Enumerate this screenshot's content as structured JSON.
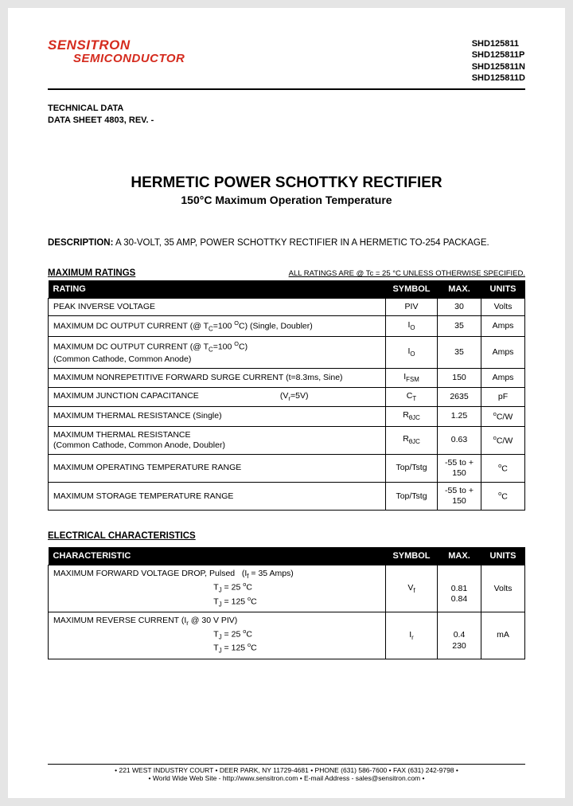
{
  "logo": {
    "line1": "SENSITRON",
    "line2": "SEMICONDUCTOR"
  },
  "part_numbers": [
    "SHD125811",
    "SHD125811P",
    "SHD125811N",
    "SHD125811D"
  ],
  "tech_data": {
    "line1": "TECHNICAL DATA",
    "line2": "DATA SHEET 4803, REV. -"
  },
  "main_title": "HERMETIC POWER SCHOTTKY RECTIFIER",
  "sub_title": "150°C Maximum Operation Temperature",
  "desc_label": "DESCRIPTION:",
  "desc_body": " A 30-VOLT, 35 AMP, POWER SCHOTTKY RECTIFIER IN A HERMETIC TO-254 PACKAGE.",
  "ratings": {
    "heading": "MAXIMUM RATINGS",
    "note": "ALL RATINGS ARE @ Tc = 25 °C UNLESS OTHERWISE SPECIFIED.",
    "cols": [
      "RATING",
      "SYMBOL",
      "MAX.",
      "UNITS"
    ],
    "rows": [
      {
        "rating": "PEAK INVERSE VOLTAGE",
        "symbol": "PIV",
        "max": "30",
        "units": "Volts"
      },
      {
        "rating": "MAXIMUM DC OUTPUT CURRENT (@ T<sub>C</sub>=100 <sup>O</sup>C) (Single, Doubler)",
        "symbol": "I<sub>O</sub>",
        "max": "35",
        "units": "Amps"
      },
      {
        "rating": "MAXIMUM DC OUTPUT CURRENT (@ T<sub>C</sub>=100 <sup>O</sup>C)<br>(Common Cathode, Common Anode)",
        "symbol": "I<sub>O</sub>",
        "max": "35",
        "units": "Amps"
      },
      {
        "rating": "MAXIMUM NONREPETITIVE FORWARD SURGE CURRENT (t=8.3ms, Sine)",
        "symbol": "I<sub>FSM</sub>",
        "max": "150",
        "units": "Amps"
      },
      {
        "rating": "MAXIMUM JUNCTION CAPACITANCE&nbsp;&nbsp;&nbsp;&nbsp;&nbsp;&nbsp;&nbsp;&nbsp;&nbsp;&nbsp;&nbsp;&nbsp;&nbsp;&nbsp;&nbsp;&nbsp;&nbsp;&nbsp;&nbsp;&nbsp;&nbsp;&nbsp;&nbsp;&nbsp;&nbsp;&nbsp;&nbsp;&nbsp;&nbsp;&nbsp;&nbsp;&nbsp;&nbsp;&nbsp;&nbsp;(V<sub>r</sub>=5V)",
        "symbol": "C<sub>T</sub>",
        "max": "2635",
        "units": "pF"
      },
      {
        "rating": "MAXIMUM THERMAL RESISTANCE (Single)",
        "symbol": "R<sub>θJC</sub>",
        "max": "1.25",
        "units": "<sup>o</sup>C/W"
      },
      {
        "rating": "MAXIMUM THERMAL RESISTANCE<br>(Common Cathode, Common Anode, Doubler)",
        "symbol": "R<sub>θJC</sub>",
        "max": "0.63",
        "units": "<sup>o</sup>C/W"
      },
      {
        "rating": "MAXIMUM OPERATING TEMPERATURE RANGE",
        "symbol": "Top/Tstg",
        "max": "-55 to + 150",
        "units": "<sup>o</sup>C"
      },
      {
        "rating": "MAXIMUM STORAGE TEMPERATURE RANGE",
        "symbol": "Top/Tstg",
        "max": "-55 to + 150",
        "units": "<sup>o</sup>C"
      }
    ]
  },
  "elec": {
    "heading": "ELECTRICAL CHARACTERISTICS",
    "cols": [
      "CHARACTERISTIC",
      "SYMBOL",
      "MAX.",
      "UNITS"
    ],
    "rows": [
      {
        "char": "MAXIMUM FORWARD VOLTAGE DROP, Pulsed&nbsp;&nbsp;&nbsp;(I<sub>f</sub> = 35 Amps)<br>&nbsp;&nbsp;&nbsp;&nbsp;&nbsp;&nbsp;&nbsp;&nbsp;&nbsp;&nbsp;&nbsp;&nbsp;&nbsp;&nbsp;&nbsp;&nbsp;&nbsp;&nbsp;&nbsp;&nbsp;&nbsp;&nbsp;&nbsp;&nbsp;&nbsp;&nbsp;&nbsp;&nbsp;&nbsp;&nbsp;&nbsp;&nbsp;&nbsp;&nbsp;&nbsp;&nbsp;&nbsp;&nbsp;&nbsp;&nbsp;&nbsp;&nbsp;&nbsp;&nbsp;&nbsp;&nbsp;&nbsp;&nbsp;&nbsp;&nbsp;&nbsp;&nbsp;&nbsp;&nbsp;&nbsp;&nbsp;&nbsp;&nbsp;&nbsp;&nbsp;&nbsp;&nbsp;&nbsp;&nbsp;&nbsp;&nbsp;&nbsp;&nbsp;&nbsp;T<sub>J</sub> = 25 <sup>o</sup>C<br>&nbsp;&nbsp;&nbsp;&nbsp;&nbsp;&nbsp;&nbsp;&nbsp;&nbsp;&nbsp;&nbsp;&nbsp;&nbsp;&nbsp;&nbsp;&nbsp;&nbsp;&nbsp;&nbsp;&nbsp;&nbsp;&nbsp;&nbsp;&nbsp;&nbsp;&nbsp;&nbsp;&nbsp;&nbsp;&nbsp;&nbsp;&nbsp;&nbsp;&nbsp;&nbsp;&nbsp;&nbsp;&nbsp;&nbsp;&nbsp;&nbsp;&nbsp;&nbsp;&nbsp;&nbsp;&nbsp;&nbsp;&nbsp;&nbsp;&nbsp;&nbsp;&nbsp;&nbsp;&nbsp;&nbsp;&nbsp;&nbsp;&nbsp;&nbsp;&nbsp;&nbsp;&nbsp;&nbsp;&nbsp;&nbsp;&nbsp;&nbsp;&nbsp;&nbsp;T<sub>J</sub> = 125 <sup>o</sup>C",
        "symbol": "V<sub>f</sub>",
        "max": "<br>0.81<br>0.84",
        "units": "Volts"
      },
      {
        "char": "MAXIMUM REVERSE CURRENT (I<sub>r</sub> @ 30 V PIV)<br>&nbsp;&nbsp;&nbsp;&nbsp;&nbsp;&nbsp;&nbsp;&nbsp;&nbsp;&nbsp;&nbsp;&nbsp;&nbsp;&nbsp;&nbsp;&nbsp;&nbsp;&nbsp;&nbsp;&nbsp;&nbsp;&nbsp;&nbsp;&nbsp;&nbsp;&nbsp;&nbsp;&nbsp;&nbsp;&nbsp;&nbsp;&nbsp;&nbsp;&nbsp;&nbsp;&nbsp;&nbsp;&nbsp;&nbsp;&nbsp;&nbsp;&nbsp;&nbsp;&nbsp;&nbsp;&nbsp;&nbsp;&nbsp;&nbsp;&nbsp;&nbsp;&nbsp;&nbsp;&nbsp;&nbsp;&nbsp;&nbsp;&nbsp;&nbsp;&nbsp;&nbsp;&nbsp;&nbsp;&nbsp;&nbsp;&nbsp;&nbsp;&nbsp;&nbsp;T<sub>J</sub> = 25 <sup>o</sup>C<br>&nbsp;&nbsp;&nbsp;&nbsp;&nbsp;&nbsp;&nbsp;&nbsp;&nbsp;&nbsp;&nbsp;&nbsp;&nbsp;&nbsp;&nbsp;&nbsp;&nbsp;&nbsp;&nbsp;&nbsp;&nbsp;&nbsp;&nbsp;&nbsp;&nbsp;&nbsp;&nbsp;&nbsp;&nbsp;&nbsp;&nbsp;&nbsp;&nbsp;&nbsp;&nbsp;&nbsp;&nbsp;&nbsp;&nbsp;&nbsp;&nbsp;&nbsp;&nbsp;&nbsp;&nbsp;&nbsp;&nbsp;&nbsp;&nbsp;&nbsp;&nbsp;&nbsp;&nbsp;&nbsp;&nbsp;&nbsp;&nbsp;&nbsp;&nbsp;&nbsp;&nbsp;&nbsp;&nbsp;&nbsp;&nbsp;&nbsp;&nbsp;&nbsp;&nbsp;T<sub>J</sub> = 125 <sup>o</sup>C",
        "symbol": "I<sub>r</sub>",
        "max": "<br>0.4<br>230",
        "units": "mA"
      }
    ]
  },
  "footer": {
    "line1": "• 221 WEST INDUSTRY COURT • DEER PARK, NY 11729-4681 • PHONE (631) 586-7600 • FAX (631) 242-9798 •",
    "line2": "• World Wide Web Site - http://www.sensitron.com • E-mail Address - sales@sensitron.com •"
  }
}
